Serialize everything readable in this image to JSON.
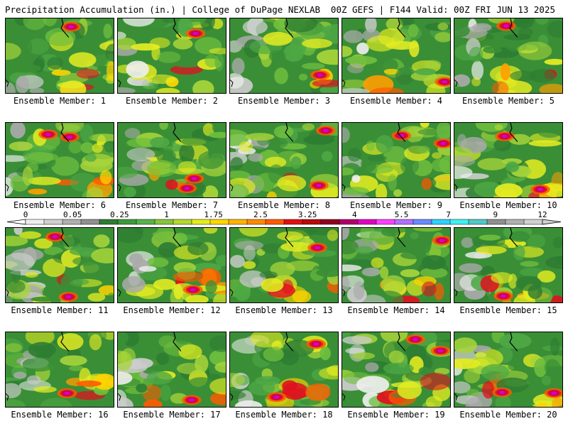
{
  "header": {
    "left": "Precipitation Accumulation (in.) | College of DuPage NEXLAB",
    "right": "00Z GEFS | F144 Valid: 00Z FRI JUN 13 2025"
  },
  "member_label": "Ensemble Member:",
  "members": [
    1,
    2,
    3,
    4,
    5,
    6,
    7,
    8,
    9,
    10,
    11,
    12,
    13,
    14,
    15,
    16,
    17,
    18,
    19,
    20
  ],
  "colorbar": {
    "tick_labels": [
      "0",
      "0.05",
      "0.25",
      "1",
      "1.75",
      "2.5",
      "3.25",
      "4",
      "5.5",
      "7",
      "9",
      "12"
    ],
    "colors": [
      "#eeeeee",
      "#d0d0d0",
      "#b0b0b0",
      "#909090",
      "#2e7d32",
      "#3f9a3a",
      "#57b34a",
      "#86c63c",
      "#b5d830",
      "#e5ec1e",
      "#ffd700",
      "#ffb300",
      "#ff8a00",
      "#ff5a00",
      "#e01010",
      "#b80a0a",
      "#900020",
      "#b0006a",
      "#e000c0",
      "#ff40ff",
      "#b070ff",
      "#6a8aff",
      "#30d0ff",
      "#40f0f0",
      "#50c8c8",
      "#909090",
      "#b0b0b0",
      "#d0d0d0"
    ]
  }
}
